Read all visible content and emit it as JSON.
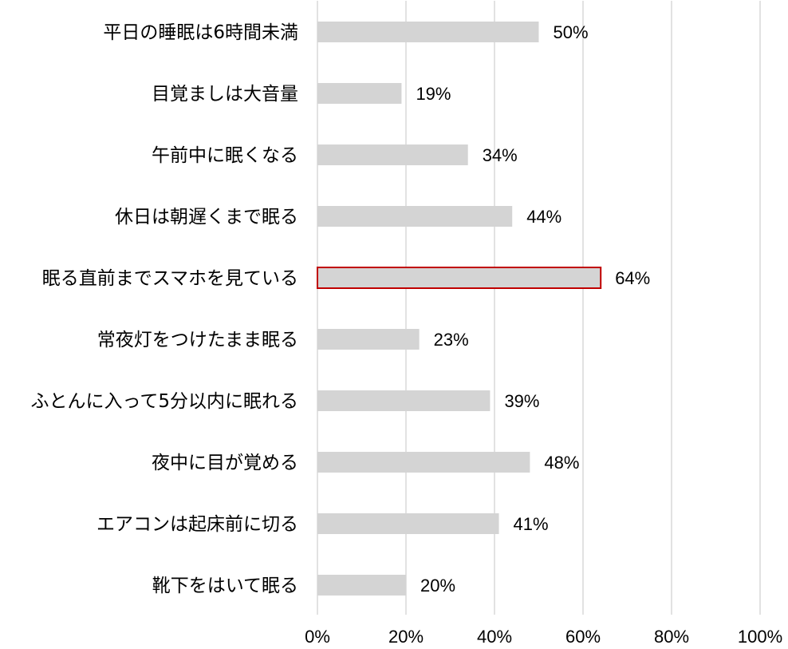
{
  "chart_data": {
    "type": "bar",
    "orientation": "horizontal",
    "title": "",
    "xlabel": "",
    "ylabel": "",
    "categories": [
      "平日の睡眠は6時間未満",
      "目覚ましは大音量",
      "午前中に眠くなる",
      "休日は朝遅くまで眠る",
      "眠る直前までスマホを見ている",
      "常夜灯をつけたまま眠る",
      "ふとんに入って5分以内に眠れる",
      "夜中に目が覚める",
      "エアコンは起床前に切る",
      "靴下をはいて眠る"
    ],
    "values": [
      50,
      19,
      34,
      44,
      64,
      23,
      39,
      48,
      41,
      20
    ],
    "value_labels": [
      "50%",
      "19%",
      "34%",
      "44%",
      "64%",
      "23%",
      "39%",
      "48%",
      "41%",
      "20%"
    ],
    "highlight_index": 4,
    "xlim": [
      0,
      100
    ],
    "xticks": [
      0,
      20,
      40,
      60,
      80,
      100
    ],
    "xtick_labels": [
      "0%",
      "20%",
      "40%",
      "60%",
      "80%",
      "100%"
    ],
    "grid": "vertical",
    "legend": "none",
    "colors": {
      "bar": "#d4d4d4",
      "highlight_border": "#c00000",
      "grid": "#d9d9d9",
      "text": "#000000"
    }
  }
}
